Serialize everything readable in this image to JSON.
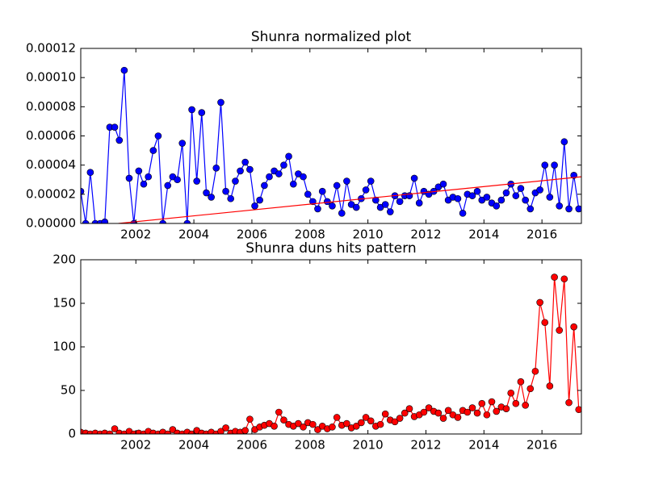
{
  "chart_data": [
    {
      "type": "line",
      "title": "Shunra normalized plot",
      "xlim": [
        2000.1,
        2017.36
      ],
      "xticks": [
        2002,
        2004,
        2006,
        2008,
        2010,
        2012,
        2014,
        2016
      ],
      "ylim": [
        0,
        0.00012
      ],
      "yticks": [
        {
          "value": 0,
          "label": "0.00000"
        },
        {
          "value": 2e-05,
          "label": "0.00002"
        },
        {
          "value": 4e-05,
          "label": "0.00004"
        },
        {
          "value": 6e-05,
          "label": "0.00006"
        },
        {
          "value": 8e-05,
          "label": "0.00008"
        },
        {
          "value": 0.0001,
          "label": "0.00010"
        },
        {
          "value": 0.00012,
          "label": "0.00012"
        }
      ],
      "series": [
        {
          "color": "#0000ff",
          "markers": true,
          "x": [
            2000.1,
            2000.27,
            2000.43,
            2000.6,
            2000.77,
            2000.93,
            2001.1,
            2001.27,
            2001.43,
            2001.6,
            2001.77,
            2001.93,
            2002.1,
            2002.27,
            2002.43,
            2002.6,
            2002.77,
            2002.93,
            2003.1,
            2003.27,
            2003.43,
            2003.6,
            2003.77,
            2003.93,
            2004.1,
            2004.27,
            2004.43,
            2004.6,
            2004.77,
            2004.93,
            2005.1,
            2005.27,
            2005.43,
            2005.6,
            2005.77,
            2005.93,
            2006.1,
            2006.27,
            2006.43,
            2006.6,
            2006.77,
            2006.93,
            2007.1,
            2007.27,
            2007.43,
            2007.6,
            2007.77,
            2007.93,
            2008.1,
            2008.27,
            2008.43,
            2008.6,
            2008.77,
            2008.93,
            2009.1,
            2009.27,
            2009.43,
            2009.6,
            2009.77,
            2009.93,
            2010.1,
            2010.27,
            2010.43,
            2010.6,
            2010.77,
            2010.93,
            2011.1,
            2011.27,
            2011.43,
            2011.6,
            2011.77,
            2011.93,
            2012.1,
            2012.27,
            2012.43,
            2012.6,
            2012.77,
            2012.93,
            2013.1,
            2013.27,
            2013.43,
            2013.6,
            2013.77,
            2013.93,
            2014.1,
            2014.27,
            2014.43,
            2014.6,
            2014.77,
            2014.93,
            2015.1,
            2015.27,
            2015.43,
            2015.6,
            2015.77,
            2015.93,
            2016.1,
            2016.27,
            2016.43,
            2016.6,
            2016.77,
            2016.93,
            2017.1,
            2017.27
          ],
          "values": [
            2.2e-05,
            0,
            3.5e-05,
            0,
            0,
            1e-06,
            6.6e-05,
            6.6e-05,
            5.7e-05,
            0.000105,
            3.1e-05,
            0,
            3.6e-05,
            2.7e-05,
            3.2e-05,
            5e-05,
            6e-05,
            0,
            2.6e-05,
            3.2e-05,
            3e-05,
            5.5e-05,
            0,
            7.8e-05,
            2.9e-05,
            7.6e-05,
            2.1e-05,
            1.8e-05,
            3.8e-05,
            8.3e-05,
            2.2e-05,
            1.7e-05,
            2.9e-05,
            3.6e-05,
            4.2e-05,
            3.7e-05,
            1.2e-05,
            1.6e-05,
            2.6e-05,
            3.2e-05,
            3.6e-05,
            3.4e-05,
            4e-05,
            4.6e-05,
            2.7e-05,
            3.4e-05,
            3.2e-05,
            2e-05,
            1.5e-05,
            1e-05,
            2.2e-05,
            1.5e-05,
            1.2e-05,
            2.6e-05,
            7e-06,
            2.9e-05,
            1.3e-05,
            1.1e-05,
            1.7e-05,
            2.3e-05,
            2.9e-05,
            1.6e-05,
            1.1e-05,
            1.3e-05,
            8e-06,
            1.9e-05,
            1.5e-05,
            1.9e-05,
            1.9e-05,
            3.1e-05,
            1.4e-05,
            2.2e-05,
            2e-05,
            2.2e-05,
            2.5e-05,
            2.7e-05,
            1.6e-05,
            1.8e-05,
            1.7e-05,
            7e-06,
            2e-05,
            1.9e-05,
            2.2e-05,
            1.6e-05,
            1.8e-05,
            1.4e-05,
            1.2e-05,
            1.6e-05,
            2.1e-05,
            2.7e-05,
            1.9e-05,
            2.4e-05,
            1.6e-05,
            1e-05,
            2.1e-05,
            2.3e-05,
            4e-05,
            1.8e-05,
            4e-05,
            1.2e-05,
            5.6e-05,
            1e-05,
            3.3e-05,
            1e-05
          ]
        },
        {
          "color": "#ff0000",
          "markers": false,
          "x": [
            2001.4,
            2017.36
          ],
          "values": [
            0,
            3.2e-05
          ]
        }
      ]
    },
    {
      "type": "line",
      "title": "Shunra duns hits pattern",
      "xlim": [
        2000.1,
        2017.36
      ],
      "xticks": [
        2002,
        2004,
        2006,
        2008,
        2010,
        2012,
        2014,
        2016
      ],
      "ylim": [
        0,
        200
      ],
      "yticks": [
        0,
        50,
        100,
        150,
        200
      ],
      "series": [
        {
          "color": "#ff0000",
          "markers": true,
          "x": [
            2000.1,
            2000.27,
            2000.43,
            2000.6,
            2000.77,
            2000.93,
            2001.1,
            2001.27,
            2001.43,
            2001.6,
            2001.77,
            2001.93,
            2002.1,
            2002.27,
            2002.43,
            2002.6,
            2002.77,
            2002.93,
            2003.1,
            2003.27,
            2003.43,
            2003.6,
            2003.77,
            2003.93,
            2004.1,
            2004.27,
            2004.43,
            2004.6,
            2004.77,
            2004.93,
            2005.1,
            2005.27,
            2005.43,
            2005.6,
            2005.77,
            2005.93,
            2006.1,
            2006.27,
            2006.43,
            2006.6,
            2006.77,
            2006.93,
            2007.1,
            2007.27,
            2007.43,
            2007.6,
            2007.77,
            2007.93,
            2008.1,
            2008.27,
            2008.43,
            2008.6,
            2008.77,
            2008.93,
            2009.1,
            2009.27,
            2009.43,
            2009.6,
            2009.77,
            2009.93,
            2010.1,
            2010.27,
            2010.43,
            2010.6,
            2010.77,
            2010.93,
            2011.1,
            2011.27,
            2011.43,
            2011.6,
            2011.77,
            2011.93,
            2012.1,
            2012.27,
            2012.43,
            2012.6,
            2012.77,
            2012.93,
            2013.1,
            2013.27,
            2013.43,
            2013.6,
            2013.77,
            2013.93,
            2014.1,
            2014.27,
            2014.43,
            2014.6,
            2014.77,
            2014.93,
            2015.1,
            2015.27,
            2015.43,
            2015.6,
            2015.77,
            2015.93,
            2016.1,
            2016.27,
            2016.43,
            2016.6,
            2016.77,
            2016.93,
            2017.1,
            2017.27
          ],
          "values": [
            2,
            1,
            0,
            1,
            0,
            1,
            0,
            6,
            1,
            0,
            3,
            0,
            1,
            0,
            3,
            1,
            0,
            2,
            0,
            5,
            1,
            0,
            2,
            0,
            4,
            1,
            0,
            2,
            0,
            3,
            7,
            1,
            3,
            2,
            4,
            17,
            5,
            8,
            10,
            12,
            9,
            25,
            16,
            11,
            9,
            12,
            8,
            13,
            11,
            5,
            9,
            6,
            8,
            19,
            10,
            12,
            7,
            9,
            13,
            19,
            15,
            9,
            11,
            23,
            16,
            14,
            18,
            24,
            29,
            20,
            22,
            25,
            30,
            26,
            24,
            18,
            27,
            22,
            19,
            27,
            25,
            30,
            24,
            35,
            22,
            37,
            26,
            31,
            29,
            47,
            35,
            60,
            33,
            52,
            72,
            151,
            128,
            55,
            180,
            119,
            178,
            36,
            123,
            28
          ]
        }
      ]
    }
  ]
}
